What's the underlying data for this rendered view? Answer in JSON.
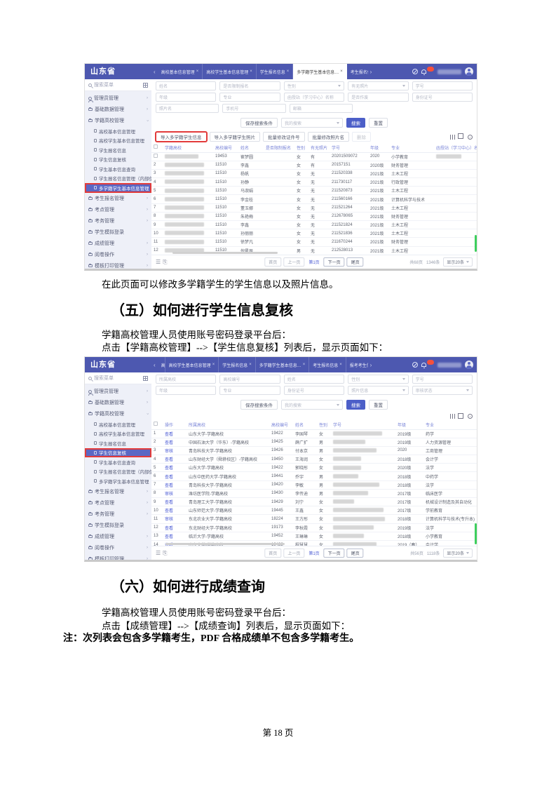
{
  "doc": {
    "caption_after_s1": "在此页面可以修改多学籍学生的学生信息以及照片信息。",
    "sec5_heading": "（五）如何进行学生信息复核",
    "sec5_line1": "学籍高校管理人员使用账号密码登录平台后：",
    "sec5_line2": "点击【学籍高校管理】-->【学生信息复核】列表后，显示页面如下：",
    "sec6_heading": "（六）如何进行成绩查询",
    "sec6_line1": "学籍高校管理人员使用账号密码登录平台后：",
    "sec6_line2": "点击【成绩管理】-->【成绩查询】列表后，显示页面如下：",
    "sec6_note": "注：次列表会包含多学籍考生，PDF 合格成绩单不包含多学籍考生。",
    "footer": "第 18 页"
  },
  "app": {
    "brand": "山东省",
    "menu_search_placeholder": "搜索菜单",
    "accent": "#4d58b0",
    "annotation_color": "#e23b3b",
    "sidebar": [
      {
        "label": "管理员管理",
        "icon": "user",
        "arrow": ">"
      },
      {
        "label": "基础数据管理",
        "icon": "folder",
        "arrow": ">"
      },
      {
        "label": "学籍高校管理",
        "icon": "folder",
        "arrow": "v",
        "children": [
          "高校基本信息管理",
          "高校学生基本信息管理",
          "学生报名信息",
          "学生信息复核",
          "学生基本信息查询",
          "学生报名信息管理（内部使用）",
          "多学籍学生基本信息管理"
        ]
      },
      {
        "label": "考生报名管理",
        "icon": "folder",
        "arrow": ">"
      },
      {
        "label": "考点管理",
        "icon": "folder",
        "arrow": ">"
      },
      {
        "label": "考务管理",
        "icon": "folder",
        "arrow": ">"
      },
      {
        "label": "学生模拟登录",
        "icon": "folder",
        "arrow": ""
      },
      {
        "label": "成绩管理",
        "icon": "folder",
        "arrow": ">"
      },
      {
        "label": "阅卷操作",
        "icon": "folder",
        "arrow": ">"
      },
      {
        "label": "模板打印管理",
        "icon": "folder",
        "arrow": ">"
      }
    ]
  },
  "s1": {
    "selected_menu_child": 6,
    "tabs": {
      "active": 3,
      "items": [
        {
          "label": "高校基本信息管理"
        },
        {
          "label": "高校学生基本信息管理"
        },
        {
          "label": "学生报名信息"
        },
        {
          "label": "多学籍学生基本信息…"
        },
        {
          "label": "考生报名信息"
        },
        {
          "label": "报考考生信息"
        },
        {
          "label": "学生信…",
          "clip": true
        }
      ]
    },
    "filters": [
      [
        {
          "label": "姓名"
        },
        {
          "label": "是否限制报名"
        },
        {
          "label": "性别",
          "select": true
        },
        {
          "label": "有无照片",
          "select": true
        },
        {
          "label": "学号"
        }
      ],
      [
        {
          "label": "年级"
        },
        {
          "label": "专业"
        },
        {
          "label": "函授站（学习中心）名称"
        },
        {
          "label": "是否作废"
        },
        {
          "label": "身份证号"
        }
      ],
      [
        {
          "label": "照片名"
        },
        {
          "label": "手机号"
        },
        {
          "label": "邮箱"
        }
      ]
    ],
    "save_search": "保存搜索条件",
    "my_search": "我的搜索",
    "search": "搜索",
    "reset": "重置",
    "action_buttons": [
      {
        "label": "导入多学籍学生信息",
        "annot": true
      },
      {
        "label": "导入多学籍学生照片"
      },
      {
        "label": "批量修改证件号"
      },
      {
        "label": "批量修改照片名"
      },
      {
        "label": "删除",
        "disabled": true
      }
    ],
    "table": {
      "headers": [
        "",
        "学籍高校",
        "高校编号",
        "姓名",
        "是否限制报名",
        "性别",
        "有无照片",
        "学号",
        "年级",
        "专业",
        "函授站（学习中心）名称"
      ],
      "rows": [
        {
          "idx": "1",
          "code": "19453",
          "name": "崔梦圆",
          "limit": "",
          "sex": "女",
          "photo": "有",
          "sno": "20201509072",
          "grade": "2020",
          "major": "小学教育",
          "station_redacted": true
        },
        {
          "idx": "2",
          "code": "11510",
          "name": "李鑫",
          "limit": "",
          "sex": "女",
          "photo": "有",
          "sno": "20157151",
          "grade": "2020级",
          "major": "财务管理"
        },
        {
          "idx": "3",
          "code": "11510",
          "name": "杨帆",
          "limit": "",
          "sex": "女",
          "photo": "无",
          "sno": "211520338",
          "grade": "2021级",
          "major": "土木工程"
        },
        {
          "idx": "4",
          "code": "11510",
          "name": "孙静",
          "limit": "",
          "sex": "女",
          "photo": "无",
          "sno": "211730117",
          "grade": "2021级",
          "major": "行政管理"
        },
        {
          "idx": "5",
          "code": "11510",
          "name": "马淑娟",
          "limit": "",
          "sex": "女",
          "photo": "无",
          "sno": "211520873",
          "grade": "2021级",
          "major": "土木工程"
        },
        {
          "idx": "6",
          "code": "11510",
          "name": "李金桂",
          "limit": "",
          "sex": "女",
          "photo": "无",
          "sno": "211560166",
          "grade": "2021级",
          "major": "计算机科学与技术"
        },
        {
          "idx": "7",
          "code": "11510",
          "name": "董玉娜",
          "limit": "",
          "sex": "女",
          "photo": "无",
          "sno": "211521264",
          "grade": "2021级",
          "major": "土木工程"
        },
        {
          "idx": "8",
          "code": "11510",
          "name": "朱艳梅",
          "limit": "",
          "sex": "女",
          "photo": "无",
          "sno": "212678065",
          "grade": "2021级",
          "major": "财务管理"
        },
        {
          "idx": "9",
          "code": "11510",
          "name": "李鑫",
          "limit": "",
          "sex": "女",
          "photo": "无",
          "sno": "211521824",
          "grade": "2021级",
          "major": "土木工程"
        },
        {
          "idx": "10",
          "code": "11510",
          "name": "孙丽丽",
          "limit": "",
          "sex": "女",
          "photo": "无",
          "sno": "211521836",
          "grade": "2021级",
          "major": "土木工程"
        },
        {
          "idx": "11",
          "code": "11510",
          "name": "徐梦凡",
          "limit": "",
          "sex": "女",
          "photo": "无",
          "sno": "211670244",
          "grade": "2021级",
          "major": "财务管理"
        },
        {
          "idx": "12",
          "code": "11510",
          "name": "倪星辰",
          "limit": "",
          "sex": "男",
          "photo": "无",
          "sno": "212528013",
          "grade": "2021级",
          "major": "土木工程"
        },
        {
          "idx": "13",
          "code": "11510",
          "name": "段德胜",
          "limit": "",
          "sex": "男",
          "photo": "无",
          "sno": "211780847",
          "grade": "2021级",
          "major": "轨道交通信号与控制"
        }
      ]
    },
    "pager": {
      "first": "首页",
      "prev": "上一页",
      "cur": "第1页",
      "next": "下一页",
      "last": "尾页",
      "total": "共68页",
      "count": "1346条",
      "size": "显示20条"
    }
  },
  "s2": {
    "selected_menu_child": 3,
    "tabs": {
      "active": 6,
      "items": [
        {
          "label": "高校基本信息管理",
          "clip": true
        },
        {
          "label": "高校学生基本信息管理"
        },
        {
          "label": "学生报名信息"
        },
        {
          "label": "多学籍学生基本信息…"
        },
        {
          "label": "考生报名信息"
        },
        {
          "label": "报考考生信息"
        },
        {
          "label": "学生信息复核"
        }
      ]
    },
    "filters": [
      [
        {
          "label": "所属高校"
        },
        {
          "label": "高校编号"
        },
        {
          "label": "姓名"
        },
        {
          "label": "性别",
          "select": true
        },
        {
          "label": "学号"
        }
      ],
      [
        {
          "label": "年级"
        },
        {
          "label": "专业"
        },
        {
          "label": "身份证号"
        },
        {
          "label": "照片信息",
          "select": true
        },
        {
          "label": "审核状态",
          "select": true
        }
      ]
    ],
    "save_search": "保存搜索条件",
    "my_search": "我的搜索",
    "search": "搜索",
    "reset": "重置",
    "table": {
      "headers": [
        "",
        "操作",
        "所属高校",
        "高校编号",
        "姓名",
        "性别",
        "学号",
        "年级",
        "专业"
      ],
      "rows": [
        {
          "idx": "1",
          "op": "查看",
          "school": "山东大学-学籍高校",
          "code": "19422",
          "name": "李国琴",
          "sex": "女",
          "grade": "2019级",
          "major": "药学"
        },
        {
          "idx": "2",
          "op": "查看",
          "school": "中国石油大学（华东）-学籍高校",
          "code": "19425",
          "name": "薛广扩",
          "sex": "男",
          "grade": "2019级",
          "major": "人力资源管理"
        },
        {
          "idx": "3",
          "op": "审核",
          "school": "青岛科技大学-学籍高校",
          "code": "19426",
          "name": "付本京",
          "sex": "男",
          "grade": "2020",
          "major": "工商管理"
        },
        {
          "idx": "4",
          "op": "查看",
          "school": "山东财经大学（舜耕校区）-学籍高校",
          "code": "19450",
          "name": "王海润",
          "sex": "女",
          "grade": "2018级",
          "major": "会计学"
        },
        {
          "idx": "5",
          "op": "查看",
          "school": "山东大学-学籍高校",
          "code": "19422",
          "name": "郭晓彤",
          "sex": "女",
          "grade": "2020级",
          "major": "法学"
        },
        {
          "idx": "6",
          "op": "查看",
          "school": "山东中医药大学-学籍高校",
          "code": "19441",
          "name": "乔宇",
          "sex": "男",
          "grade": "2018级",
          "major": "中药学"
        },
        {
          "idx": "7",
          "op": "查看",
          "school": "青岛科技大学-学籍高校",
          "code": "19420",
          "name": "李敏",
          "sex": "男",
          "grade": "2018级",
          "major": "法学"
        },
        {
          "idx": "8",
          "op": "审核",
          "school": "潍坊医学院-学籍高校",
          "code": "19430",
          "name": "李传迪",
          "sex": "男",
          "grade": "2017级",
          "major": "临床医学"
        },
        {
          "idx": "9",
          "op": "查看",
          "school": "青岛理工大学-学籍高校",
          "code": "19429",
          "name": "刘宁",
          "sex": "女",
          "grade": "2017级",
          "major": "机械设计制造及其自动化"
        },
        {
          "idx": "10",
          "op": "查看",
          "school": "山东师范大学-学籍高校",
          "code": "19445",
          "name": "王鑫",
          "sex": "女",
          "grade": "2017级",
          "major": "学前教育"
        },
        {
          "idx": "11",
          "op": "审核",
          "school": "东北农业大学-学籍高校",
          "code": "18224",
          "name": "王方彤",
          "sex": "女",
          "grade": "2018级",
          "major": "计算机科学与技术(专升本)"
        },
        {
          "idx": "12",
          "op": "查看",
          "school": "东北财经大学-学籍高校",
          "code": "19173",
          "name": "李秋霞",
          "sex": "女",
          "grade": "2019级",
          "major": "法学"
        },
        {
          "idx": "13",
          "op": "查看",
          "school": "临沂大学-学籍高校",
          "code": "19452",
          "name": "王琳琳",
          "sex": "女",
          "grade": "2018级",
          "major": "小学教育"
        },
        {
          "idx": "14",
          "op": "查看",
          "school": "山东大学-学籍高校",
          "code": "19422",
          "name": "程慧慧",
          "sex": "女",
          "grade": "2019（春）",
          "major": "会计学"
        }
      ]
    },
    "pager": {
      "first": "首页",
      "prev": "上一页",
      "cur": "第1页",
      "next": "下一页",
      "last": "尾页",
      "total": "共56页",
      "count": "1118条",
      "size": "显示20条"
    }
  }
}
